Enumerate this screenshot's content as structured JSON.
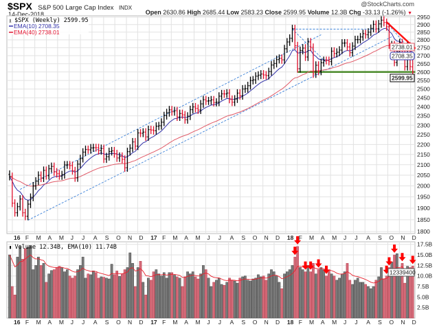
{
  "header": {
    "symbol": "$SPX",
    "name": "S&P 500 Large Cap Index",
    "exchange": "INDX",
    "date": "14-Dec-2018",
    "watermark": "@StockCharts.com",
    "open_label": "Open",
    "open": "2630.86",
    "high_label": "High",
    "high": "2685.44",
    "low_label": "Low",
    "low": "2583.23",
    "close_label": "Close",
    "close": "2599.95",
    "volume_label": "Volume",
    "volume": "12.3B",
    "chg_label": "Chg",
    "chg": "-33.13 (-1.26%)",
    "chg_arrow": "▼"
  },
  "legend": {
    "price": "$SPX (Weekly) 2599.95",
    "ema10": "EMA(10) 2708.35",
    "ema40": "EMA(40) 2738.01",
    "volume": "Volume 12.34B, EMA(10) 11.74B"
  },
  "last_values": {
    "ema40": "2738.01",
    "ema10": "2708.35",
    "close": "2599.95",
    "volume": "12339400"
  },
  "colors": {
    "up": "#000000",
    "down": "#e0102c",
    "ema10": "#3030a8",
    "ema40": "#e05866",
    "trend_dashed": "#3a80d8",
    "resistance": "#ff1010",
    "support": "#4a8a2a",
    "vol_up": "#7a7a7a",
    "vol_down": "#d46a78",
    "grid": "#e2e2e2"
  },
  "chart_data": [
    {
      "type": "ohlc",
      "interval": "weekly",
      "start": "2016-01-01",
      "end": "2018-12-14",
      "y_scale": "log",
      "ylim": [
        1775,
        2960
      ],
      "grid": true,
      "y_ticks": [
        "2950",
        "2900",
        "2850",
        "2800",
        "2750",
        "2700",
        "2650",
        "2600",
        "2550",
        "2500",
        "2450",
        "2400",
        "2350",
        "2300",
        "2250",
        "2200",
        "2150",
        "2100",
        "2050",
        "2000",
        "1950",
        "1900",
        "1850",
        "1800"
      ],
      "x_ticks": [
        "16",
        "F",
        "M",
        "A",
        "M",
        "J",
        "J",
        "A",
        "S",
        "O",
        "N",
        "D",
        "17",
        "F",
        "M",
        "A",
        "M",
        "J",
        "J",
        "A",
        "S",
        "O",
        "N",
        "D",
        "18",
        "F",
        "M",
        "A",
        "M",
        "J",
        "J",
        "A",
        "S",
        "O",
        "N",
        "D"
      ],
      "last_bar": {
        "open": 2630.86,
        "high": 2685.44,
        "low": 2583.23,
        "close": 2599.95
      },
      "closes": [
        2043.94,
        1922.03,
        1880.33,
        1906.9,
        1940.24,
        1880.05,
        1864.78,
        1917.78,
        1948.05,
        1999.99,
        2022.19,
        2049.58,
        2035.94,
        2072.78,
        2047.6,
        2080.73,
        2091.58,
        2065.3,
        2057.14,
        2046.61,
        2052.32,
        2099.06,
        2099.13,
        2096.07,
        2071.22,
        2037.41,
        2102.95,
        2129.9,
        2161.74,
        2175.03,
        2173.6,
        2182.87,
        2184.05,
        2183.87,
        2169.04,
        2179.98,
        2127.81,
        2139.16,
        2164.69,
        2168.27,
        2153.74,
        2132.98,
        2141.16,
        2126.41,
        2085.18,
        2164.45,
        2181.9,
        2213.35,
        2191.95,
        2259.53,
        2258.07,
        2263.79,
        2238.83,
        2276.98,
        2274.64,
        2271.31,
        2294.69,
        2297.42,
        2316.1,
        2351.16,
        2367.34,
        2383.12,
        2372.6,
        2378.25,
        2343.98,
        2362.72,
        2355.54,
        2328.95,
        2348.69,
        2384.2,
        2399.29,
        2390.9,
        2381.73,
        2415.82,
        2439.07,
        2431.77,
        2433.15,
        2438.3,
        2423.41,
        2425.18,
        2459.27,
        2472.54,
        2472.1,
        2476.83,
        2441.32,
        2425.55,
        2443.05,
        2476.55,
        2461.43,
        2500.23,
        2502.22,
        2519.36,
        2549.33,
        2553.17,
        2575.21,
        2581.07,
        2587.84,
        2582.3,
        2578.85,
        2602.42,
        2642.22,
        2651.5,
        2675.81,
        2683.34,
        2673.61,
        2743.15,
        2786.24,
        2810.3,
        2872.87,
        2762.13,
        2619.55,
        2732.22,
        2747.3,
        2691.25,
        2786.57,
        2752.01,
        2588.26,
        2640.87,
        2604.47,
        2656.3,
        2670.14,
        2669.91,
        2663.42,
        2727.72,
        2712.97,
        2721.33,
        2734.62,
        2779.03,
        2779.66,
        2754.88,
        2718.37,
        2759.82,
        2801.31,
        2801.83,
        2818.82,
        2840.35,
        2833.28,
        2850.13,
        2874.69,
        2901.52,
        2871.68,
        2904.98,
        2929.67,
        2913.98,
        2885.57,
        2767.13,
        2767.78,
        2658.69,
        2723.06,
        2781.01,
        2736.27,
        2632.56,
        2760.17,
        2633.08,
        2599.95
      ],
      "overlays": [
        {
          "name": "EMA(10)",
          "period": 10
        },
        {
          "name": "EMA(40)",
          "period": 40
        }
      ],
      "annotations": [
        {
          "kind": "trendline",
          "style": "dashed",
          "color": "#3a80d8",
          "from": [
            "2016-01-29",
            1984
          ],
          "to": [
            "2018-04-13",
            2833
          ]
        },
        {
          "kind": "trendline",
          "style": "dashed",
          "color": "#3a80d8",
          "from": [
            "2016-02-19",
            1848
          ],
          "to": [
            "2018-10-19",
            2820
          ]
        },
        {
          "kind": "trendline",
          "style": "dashed",
          "color": "#3a80d8",
          "from": [
            "2018-01-26",
            2870
          ],
          "to": [
            "2018-09-21",
            2870
          ]
        },
        {
          "kind": "trendline",
          "style": "dashed",
          "color": "#3a80d8",
          "from": [
            "2018-01-26",
            2870
          ],
          "to": [
            "2018-04-27",
            2657
          ]
        },
        {
          "kind": "trendline",
          "style": "dashed",
          "color": "#3a80d8",
          "from": [
            "2018-10-05",
            2913
          ],
          "to": [
            "2018-12-21",
            2701
          ]
        },
        {
          "kind": "resistance",
          "style": "solid",
          "color": "#ff1010",
          "from": [
            "2018-10-05",
            2917
          ],
          "to": [
            "2018-12-21",
            2744
          ]
        },
        {
          "kind": "support",
          "style": "solid",
          "color": "#4a8a2a",
          "from": [
            "2018-02-09",
            2600
          ],
          "to": [
            "2018-12-21",
            2600
          ]
        }
      ]
    },
    {
      "type": "bar",
      "name": "Volume",
      "unit": "B",
      "ylim": [
        0,
        18
      ],
      "y_ticks": [
        "17.5B",
        "15.0B",
        "12.5B",
        "10.0B",
        "7.5B",
        "5.0B",
        "2.5B"
      ],
      "ema_period": 10,
      "values": [
        15.0,
        7.5,
        5.5,
        14.5,
        17.0,
        14.0,
        16.5,
        16.8,
        17.0,
        11.5,
        12.5,
        14.5,
        12.5,
        13.0,
        8.5,
        10.5,
        11.3,
        11.5,
        12.0,
        12.3,
        12.0,
        11.0,
        11.5,
        10.0,
        9.5,
        10.0,
        11.5,
        12.5,
        14.5,
        9.5,
        10.5,
        10.3,
        11.2,
        10.8,
        9.5,
        9.8,
        9.7,
        9.5,
        9.3,
        12.8,
        10.3,
        11.2,
        9.9,
        10.5,
        11.5,
        12.0,
        15.5,
        13.0,
        7.5,
        12.0,
        13.5,
        8.5,
        5.5,
        9.5,
        9.0,
        11.0,
        11.5,
        10.5,
        10.0,
        10.8,
        9.5,
        10.8,
        10.8,
        10.2,
        9.8,
        9.5,
        7.5,
        9.8,
        11.0,
        10.5,
        11.0,
        9.8,
        9.3,
        10.5,
        12.5,
        11.5,
        9.5,
        7.5,
        8.5,
        9.0,
        9.5,
        8.0,
        7.8,
        8.5,
        9.5,
        9.0,
        8.8,
        8.3,
        9.5,
        9.8,
        10.0,
        9.0,
        8.8,
        9.3,
        9.5,
        10.3,
        9.8,
        10.0,
        9.0,
        10.5,
        11.5,
        11.0,
        10.0,
        8.5,
        7.0,
        10.5,
        11.0,
        11.5,
        12.5,
        14.5,
        17.0,
        12.0,
        11.5,
        11.0,
        12.5,
        11.0,
        13.0,
        10.5,
        11.5,
        12.0,
        11.5,
        10.0,
        11.5,
        10.5,
        10.0,
        9.0,
        9.5,
        10.5,
        11.0,
        13.0,
        9.0,
        8.0,
        9.0,
        9.5,
        8.5,
        8.5,
        8.0,
        7.5,
        7.0,
        7.5,
        9.0,
        9.8,
        12.0,
        9.3,
        10.0,
        12.0,
        13.3,
        15.0,
        15.3,
        11.8,
        13.0,
        8.3,
        12.3,
        12.0,
        12.34
      ],
      "arrow_marks": [
        "2018-02-02",
        "2018-02-09",
        "2018-03-02",
        "2018-03-16",
        "2018-04-06",
        "2018-04-27",
        "2018-10-05",
        "2018-10-12",
        "2018-10-26",
        "2018-11-16",
        "2018-12-14"
      ]
    }
  ]
}
